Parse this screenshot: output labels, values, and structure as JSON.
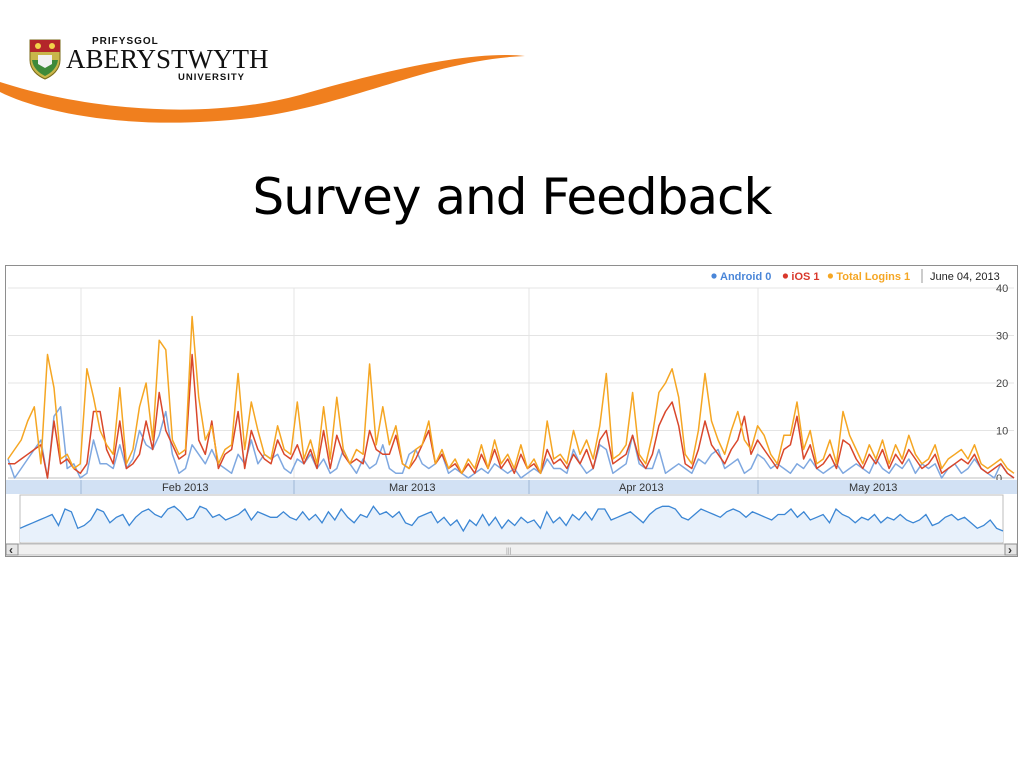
{
  "slide": {
    "title": "Survey and Feedback"
  },
  "logo": {
    "line_top": "PRIFYSGOL",
    "line_main": "ABERYSTWYTH",
    "line_bottom": "UNIVERSITY",
    "swoosh_color": "#f07f1e"
  },
  "chart_data": {
    "type": "line",
    "legend": [
      {
        "series": "Android",
        "label": "Android 0",
        "color": "#4a86d8"
      },
      {
        "series": "iOS",
        "label": "iOS 1",
        "color": "#d9382b"
      },
      {
        "series": "Total Logins",
        "label": "Total Logins 1",
        "color": "#f5a623"
      }
    ],
    "legend_placement": "top-right",
    "date_label": "June 04, 2013",
    "x_tick_labels": [
      "Feb 2013",
      "Mar 2013",
      "Apr 2013",
      "May 2013"
    ],
    "y_axis": {
      "ticks": [
        0,
        10,
        20,
        30,
        40
      ],
      "ylim": [
        0,
        40
      ],
      "position": "right"
    },
    "grid": true,
    "series": [
      {
        "name": "Android",
        "color": "#7fa8e0",
        "values": [
          4,
          0,
          2,
          4,
          6,
          8,
          0,
          13,
          15,
          2,
          3,
          0,
          1,
          8,
          3,
          3,
          2,
          7,
          2,
          4,
          10,
          7,
          6,
          9,
          14,
          5,
          1,
          2,
          7,
          5,
          3,
          6,
          3,
          2,
          1,
          5,
          3,
          8,
          3,
          5,
          4,
          5,
          2,
          1,
          4,
          3,
          5,
          2,
          4,
          1,
          2,
          6,
          3,
          1,
          4,
          2,
          3,
          7,
          2,
          1,
          1,
          5,
          6,
          3,
          2,
          3,
          5,
          1,
          2,
          1,
          0,
          1,
          2,
          1,
          3,
          2,
          1,
          2,
          0,
          1,
          2,
          1,
          4,
          2,
          2,
          1,
          6,
          3,
          1,
          2,
          7,
          6,
          1,
          2,
          3,
          9,
          3,
          2,
          2,
          6,
          1,
          2,
          3,
          2,
          1,
          4,
          3,
          5,
          6,
          2,
          3,
          4,
          1,
          2,
          5,
          4,
          2,
          3,
          2,
          1,
          3,
          2,
          4,
          2,
          1,
          2,
          3,
          1,
          2,
          3,
          2,
          1,
          4,
          2,
          1,
          3,
          2,
          4,
          1,
          3,
          2,
          3,
          0,
          2,
          3,
          1,
          2,
          4,
          2,
          1,
          0,
          3,
          1,
          0
        ]
      },
      {
        "name": "iOS",
        "color": "#d9472b",
        "values": [
          3,
          3,
          4,
          5,
          6,
          7,
          0,
          12,
          3,
          4,
          2,
          1,
          3,
          14,
          14,
          6,
          3,
          12,
          2,
          3,
          5,
          12,
          6,
          18,
          10,
          7,
          4,
          5,
          26,
          8,
          5,
          12,
          2,
          5,
          6,
          14,
          2,
          10,
          6,
          4,
          3,
          8,
          5,
          4,
          7,
          3,
          6,
          2,
          10,
          2,
          9,
          5,
          3,
          4,
          3,
          10,
          6,
          5,
          5,
          9,
          3,
          2,
          4,
          7,
          10,
          3,
          5,
          2,
          3,
          1,
          3,
          1,
          5,
          2,
          6,
          2,
          4,
          1,
          5,
          2,
          3,
          1,
          6,
          3,
          4,
          2,
          5,
          3,
          6,
          2,
          8,
          10,
          3,
          4,
          5,
          9,
          4,
          2,
          5,
          11,
          14,
          16,
          11,
          3,
          2,
          6,
          12,
          7,
          5,
          3,
          6,
          8,
          13,
          5,
          8,
          6,
          4,
          2,
          6,
          7,
          13,
          4,
          7,
          2,
          3,
          5,
          2,
          8,
          7,
          4,
          2,
          5,
          3,
          6,
          2,
          5,
          3,
          6,
          4,
          2,
          3,
          5,
          1,
          2,
          3,
          4,
          3,
          5,
          2,
          1,
          2,
          3,
          1,
          0
        ]
      },
      {
        "name": "Total Logins",
        "color": "#f5a623",
        "values": [
          4,
          6,
          8,
          12,
          15,
          3,
          26,
          19,
          4,
          5,
          2,
          3,
          23,
          17,
          10,
          7,
          5,
          19,
          3,
          6,
          15,
          20,
          8,
          29,
          27,
          8,
          5,
          6,
          34,
          17,
          8,
          11,
          3,
          6,
          7,
          22,
          6,
          16,
          10,
          5,
          4,
          11,
          6,
          5,
          16,
          4,
          8,
          3,
          15,
          4,
          17,
          6,
          3,
          6,
          5,
          24,
          7,
          15,
          7,
          11,
          3,
          2,
          6,
          7,
          12,
          3,
          6,
          2,
          4,
          1,
          4,
          2,
          7,
          2,
          8,
          3,
          5,
          2,
          7,
          2,
          4,
          1,
          12,
          4,
          5,
          3,
          10,
          5,
          8,
          4,
          11,
          22,
          4,
          5,
          7,
          18,
          5,
          3,
          9,
          18,
          20,
          23,
          17,
          5,
          3,
          10,
          22,
          12,
          8,
          5,
          10,
          14,
          8,
          6,
          11,
          9,
          5,
          3,
          9,
          9,
          16,
          6,
          10,
          3,
          4,
          8,
          3,
          14,
          9,
          6,
          3,
          7,
          4,
          8,
          3,
          7,
          4,
          9,
          5,
          3,
          4,
          7,
          2,
          4,
          5,
          6,
          4,
          7,
          3,
          2,
          3,
          4,
          2,
          1
        ]
      }
    ],
    "navigator_series": {
      "name": "Total Logins",
      "color": "#3b86d4",
      "values": [
        5,
        6,
        7,
        8,
        9,
        10,
        6,
        12,
        11,
        5,
        6,
        8,
        12,
        11,
        7,
        9,
        10,
        6,
        9,
        11,
        12,
        10,
        9,
        12,
        13,
        11,
        8,
        9,
        13,
        12,
        9,
        10,
        8,
        9,
        10,
        12,
        8,
        11,
        10,
        9,
        9,
        11,
        9,
        8,
        11,
        8,
        10,
        7,
        11,
        8,
        12,
        9,
        7,
        10,
        9,
        13,
        10,
        11,
        9,
        11,
        7,
        6,
        9,
        10,
        11,
        7,
        9,
        6,
        8,
        4,
        8,
        6,
        10,
        6,
        9,
        5,
        8,
        6,
        9,
        7,
        8,
        5,
        11,
        7,
        9,
        6,
        10,
        8,
        11,
        8,
        12,
        12,
        8,
        9,
        10,
        11,
        9,
        7,
        10,
        12,
        13,
        13,
        12,
        9,
        8,
        10,
        12,
        11,
        10,
        9,
        11,
        12,
        11,
        9,
        11,
        10,
        9,
        8,
        10,
        10,
        12,
        9,
        11,
        8,
        9,
        10,
        7,
        12,
        10,
        9,
        7,
        9,
        8,
        10,
        7,
        9,
        8,
        10,
        8,
        7,
        8,
        10,
        6,
        7,
        9,
        10,
        8,
        9,
        7,
        5,
        6,
        8,
        5,
        4
      ]
    }
  },
  "navigator": {
    "scroll_left_glyph": "‹",
    "scroll_right_glyph": "›",
    "handle_glyph": "|||"
  }
}
